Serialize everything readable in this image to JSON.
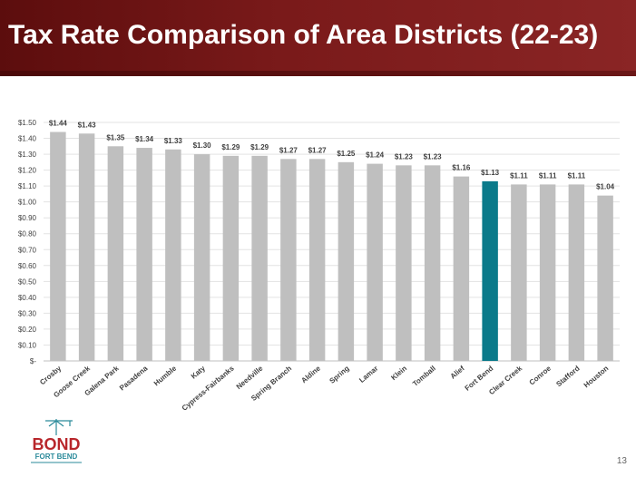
{
  "slide": {
    "title": "Tax Rate Comparison of Area Districts (22-23)",
    "page_number": "13"
  },
  "logo": {
    "line1": "BOND",
    "line2": "FORT BEND"
  },
  "colors": {
    "band": "#7a1a1a",
    "bar_default": "#bfbfbf",
    "bar_highlight": "#0b7a8a",
    "logo_red": "#b8262b",
    "logo_teal": "#2a8a9a"
  },
  "chart_data": {
    "type": "bar",
    "categories": [
      "Crosby",
      "Goose Creek",
      "Galena Park",
      "Pasadena",
      "Humble",
      "Katy",
      "Cypress-Fairbanks",
      "Needville",
      "Spring Branch",
      "Aldine",
      "Spring",
      "Lamar",
      "Klein",
      "Tomball",
      "Alief",
      "Fort Bend",
      "Clear Creek",
      "Conroe",
      "Stafford",
      "Houston"
    ],
    "values": [
      1.44,
      1.43,
      1.35,
      1.34,
      1.33,
      1.3,
      1.29,
      1.29,
      1.27,
      1.27,
      1.25,
      1.24,
      1.23,
      1.23,
      1.16,
      1.13,
      1.11,
      1.11,
      1.11,
      1.04
    ],
    "value_labels": [
      "$1.44",
      "$1.43",
      "$1.35",
      "$1.34",
      "$1.33",
      "$1.30",
      "$1.29",
      "$1.29",
      "$1.27",
      "$1.27",
      "$1.25",
      "$1.24",
      "$1.23",
      "$1.23",
      "$1.16",
      "$1.13",
      "$1.11",
      "$1.11",
      "$1.11",
      "$1.04"
    ],
    "highlight": "Fort Bend",
    "ylim": [
      0,
      1.5
    ],
    "yticks": [
      0,
      0.1,
      0.2,
      0.3,
      0.4,
      0.5,
      0.6,
      0.7,
      0.8,
      0.9,
      1.0,
      1.1,
      1.2,
      1.3,
      1.4,
      1.5
    ],
    "ytick_labels": [
      "$-",
      "$0.10",
      "$0.20",
      "$0.30",
      "$0.40",
      "$0.50",
      "$0.60",
      "$0.70",
      "$0.80",
      "$0.90",
      "$1.00",
      "$1.10",
      "$1.20",
      "$1.30",
      "$1.40",
      "$1.50"
    ],
    "grid": true,
    "legend": "none"
  }
}
